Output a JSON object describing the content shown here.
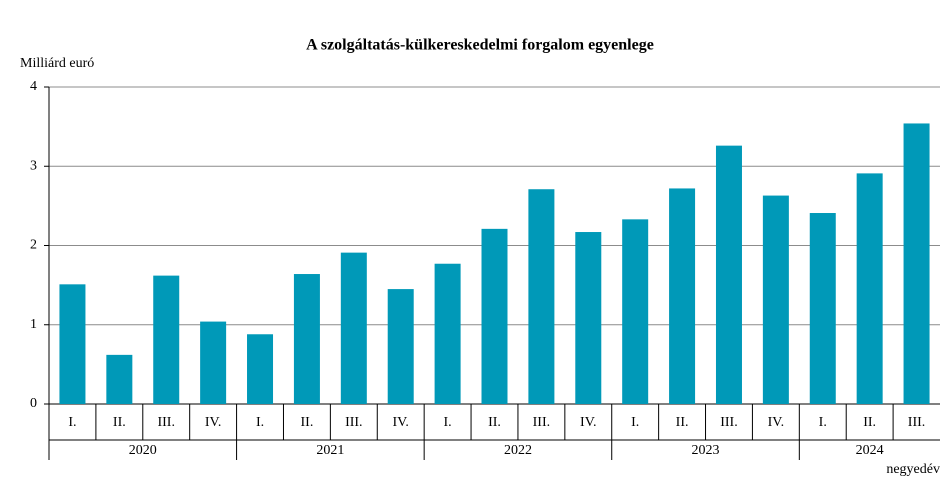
{
  "chart_data": {
    "type": "bar",
    "title": "A szolgáltatás-külkereskedelmi forgalom egyenlege",
    "y_label": "Milliárd euró",
    "x_label": "negyedév",
    "groups": [
      {
        "name": "2020",
        "categories": [
          "I.",
          "II.",
          "III.",
          "IV."
        ]
      },
      {
        "name": "2021",
        "categories": [
          "I.",
          "II.",
          "III.",
          "IV."
        ]
      },
      {
        "name": "2022",
        "categories": [
          "I.",
          "II.",
          "III.",
          "IV."
        ]
      },
      {
        "name": "2023",
        "categories": [
          "I.",
          "II.",
          "III.",
          "IV."
        ]
      },
      {
        "name": "2024",
        "categories": [
          "I.",
          "II.",
          "III."
        ]
      }
    ],
    "values": [
      1.51,
      0.62,
      1.62,
      1.04,
      0.88,
      1.64,
      1.91,
      1.45,
      1.77,
      2.21,
      2.71,
      2.17,
      2.33,
      2.72,
      3.26,
      2.63,
      2.41,
      2.91,
      3.54
    ],
    "color": "#0099b8",
    "ylim": [
      0,
      4
    ],
    "yticks": [
      0,
      1,
      2,
      3,
      4
    ],
    "grid": true
  }
}
